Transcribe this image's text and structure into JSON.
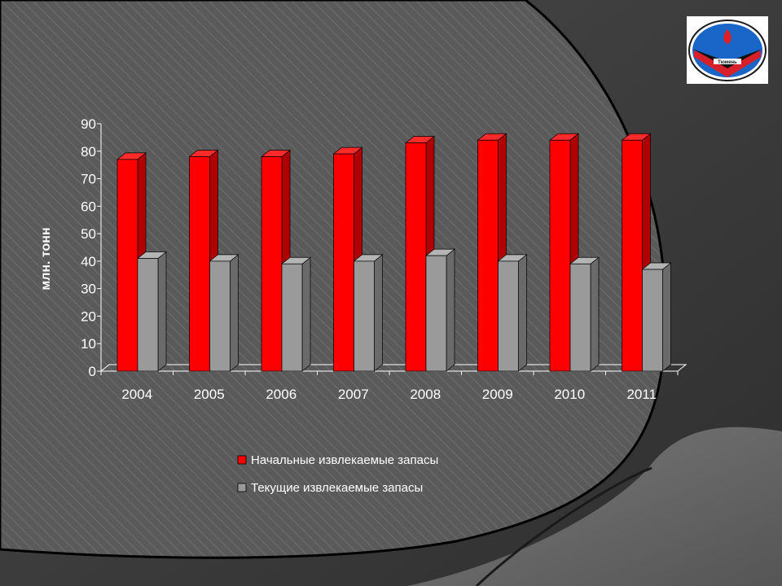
{
  "chart_data": {
    "type": "bar",
    "categories": [
      "2004",
      "2005",
      "2006",
      "2007",
      "2008",
      "2009",
      "2010",
      "2011"
    ],
    "series": [
      {
        "name": "Начальные извлекаемые запасы",
        "color": "#ff0000",
        "values": [
          77,
          78,
          78,
          79,
          83,
          84,
          84,
          84
        ]
      },
      {
        "name": "Текущие извлекаемые запасы",
        "color": "#9a9a9a",
        "values": [
          41,
          40,
          39,
          40,
          42,
          40,
          39,
          37
        ]
      }
    ],
    "ylabel": "млн. тонн",
    "ylim": [
      0,
      90
    ],
    "yticks": [
      0,
      10,
      20,
      30,
      40,
      50,
      60,
      70,
      80,
      90
    ],
    "grid": false,
    "legend": "bottom"
  },
  "logo": {
    "name": "university-emblem-icon",
    "text": "Тюмень"
  }
}
